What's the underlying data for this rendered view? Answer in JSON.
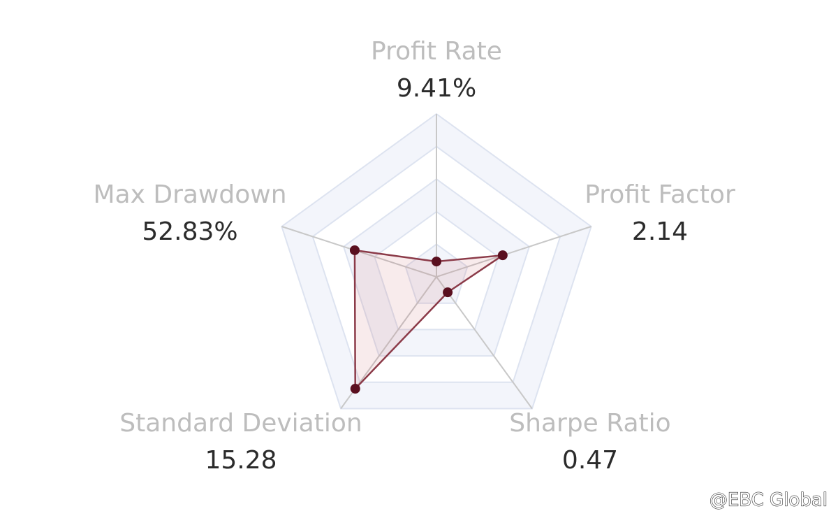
{
  "chart_data": {
    "type": "radar",
    "categories": [
      "Profit Rate",
      "Profit Factor",
      "Sharpe Ratio",
      "Standard Deviation",
      "Max Drawdown"
    ],
    "values": [
      9.41,
      2.14,
      0.47,
      15.28,
      52.83
    ],
    "value_labels": [
      "9.41%",
      "2.14",
      "0.47",
      "15.28",
      "52.83%"
    ],
    "ranges": [
      [
        0,
        100
      ],
      [
        0,
        5
      ],
      [
        0,
        4
      ],
      [
        0,
        18
      ],
      [
        0,
        100
      ]
    ],
    "color": "#5a0f1f"
  },
  "watermark": "@EBC Global"
}
